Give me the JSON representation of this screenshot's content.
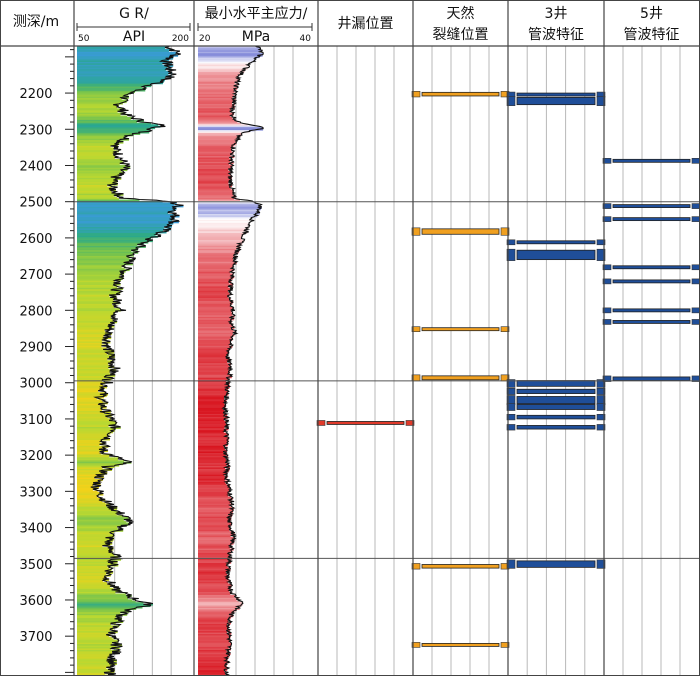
{
  "chart_data": {
    "type": "well-log",
    "depth_axis": {
      "label": "测深/m",
      "min": 2070,
      "max": 3810,
      "ticks": [
        2200,
        2300,
        2400,
        2500,
        2600,
        2700,
        2800,
        2900,
        3000,
        3100,
        3200,
        3300,
        3400,
        3500,
        3600,
        3700
      ]
    },
    "tracks": [
      {
        "key": "gr",
        "title_line1": "G R/",
        "title_line2": "API",
        "scale_min_label": "50",
        "scale_max_label": "200",
        "range": [
          50,
          200
        ],
        "fill_colors": [
          "#f2d21a",
          "#b9d832",
          "#6bbf53",
          "#2aa88c",
          "#3a9bd6"
        ]
      },
      {
        "key": "stress",
        "title_line1": "最小水平主应力/",
        "title_line2": "MPa",
        "scale_min_label": "20",
        "scale_max_label": "40",
        "range": [
          20,
          40
        ],
        "fill_colors": [
          "#d8141e",
          "#ffffff",
          "#7f86d8"
        ]
      },
      {
        "key": "loss",
        "title_line1": "井漏位置",
        "title_line2": "",
        "bar_color": "#e03a2a",
        "intervals": [
          [
            3107,
            3113
          ]
        ]
      },
      {
        "key": "fractures",
        "title_line1": "天然",
        "title_line2": "裂缝位置",
        "bar_color": "#f0a020",
        "intervals": [
          [
            2198,
            2208
          ],
          [
            2575,
            2590
          ],
          [
            2848,
            2856
          ],
          [
            2981,
            2992
          ],
          [
            3502,
            3512
          ],
          [
            3720,
            3728
          ]
        ]
      },
      {
        "key": "well3",
        "title_line1": "3井",
        "title_line2": "管波特征",
        "bar_color": "#1f4e99",
        "intervals": [
          [
            2200,
            2206
          ],
          [
            2212,
            2232
          ],
          [
            2608,
            2616
          ],
          [
            2634,
            2660
          ],
          [
            2994,
            3010
          ],
          [
            3018,
            3030
          ],
          [
            3038,
            3058
          ],
          [
            3060,
            3074
          ],
          [
            3090,
            3100
          ],
          [
            3118,
            3128
          ],
          [
            3492,
            3510
          ]
        ]
      },
      {
        "key": "well5",
        "title_line1": "5井",
        "title_line2": "管波特征",
        "bar_color": "#1f4e99",
        "intervals": [
          [
            2383,
            2391
          ],
          [
            2508,
            2516
          ],
          [
            2544,
            2552
          ],
          [
            2677,
            2685
          ],
          [
            2716,
            2724
          ],
          [
            2796,
            2804
          ],
          [
            2828,
            2836
          ],
          [
            2984,
            2994
          ]
        ]
      }
    ],
    "zone_boundaries": [
      2500,
      2995,
      3485
    ],
    "gr_curve": {
      "depth": [
        2070,
        2090,
        2110,
        2130,
        2150,
        2170,
        2200,
        2230,
        2260,
        2280,
        2290,
        2300,
        2320,
        2350,
        2380,
        2400,
        2430,
        2460,
        2490,
        2500,
        2510,
        2530,
        2550,
        2570,
        2590,
        2610,
        2640,
        2670,
        2700,
        2730,
        2760,
        2800,
        2830,
        2860,
        2900,
        2930,
        2960,
        2990,
        3010,
        3040,
        3070,
        3100,
        3130,
        3160,
        3190,
        3220,
        3230,
        3260,
        3290,
        3320,
        3350,
        3380,
        3400,
        3420,
        3450,
        3480,
        3510,
        3540,
        3570,
        3600,
        3615,
        3625,
        3640,
        3670,
        3700,
        3730,
        3760,
        3790,
        3810
      ],
      "value": [
        170,
        185,
        168,
        172,
        178,
        160,
        120,
        105,
        115,
        140,
        165,
        150,
        118,
        100,
        108,
        115,
        102,
        96,
        110,
        175,
        185,
        178,
        182,
        170,
        160,
        140,
        125,
        118,
        112,
        105,
        100,
        108,
        97,
        92,
        90,
        95,
        100,
        92,
        88,
        82,
        85,
        95,
        102,
        88,
        84,
        118,
        92,
        80,
        76,
        85,
        100,
        120,
        110,
        95,
        90,
        102,
        96,
        90,
        100,
        130,
        150,
        120,
        110,
        100,
        96,
        104,
        98,
        92,
        96
      ]
    },
    "stress_curve": {
      "depth": [
        2070,
        2090,
        2110,
        2130,
        2150,
        2170,
        2200,
        2230,
        2260,
        2280,
        2295,
        2310,
        2340,
        2370,
        2400,
        2430,
        2460,
        2490,
        2500,
        2510,
        2530,
        2550,
        2570,
        2590,
        2610,
        2640,
        2670,
        2700,
        2730,
        2760,
        2800,
        2830,
        2860,
        2900,
        2930,
        2960,
        2990,
        3010,
        3040,
        3070,
        3100,
        3130,
        3160,
        3190,
        3220,
        3260,
        3300,
        3340,
        3380,
        3420,
        3460,
        3500,
        3540,
        3580,
        3610,
        3620,
        3640,
        3680,
        3720,
        3760,
        3790,
        3810
      ],
      "value": [
        30.5,
        31.2,
        29.8,
        28.5,
        27.4,
        26.8,
        26.5,
        26.2,
        26.0,
        27.0,
        32.0,
        27.5,
        26.4,
        26.0,
        25.8,
        25.6,
        25.9,
        26.2,
        30.0,
        31.0,
        30.5,
        29.5,
        28.8,
        28.2,
        27.6,
        26.8,
        26.4,
        26.0,
        25.8,
        25.6,
        26.2,
        25.8,
        26.4,
        25.6,
        25.2,
        25.8,
        25.4,
        25.2,
        25.0,
        24.8,
        25.0,
        24.9,
        25.1,
        24.8,
        25.2,
        25.0,
        25.6,
        26.0,
        25.4,
        26.2,
        25.8,
        25.4,
        25.2,
        26.0,
        28.0,
        27.0,
        25.8,
        25.4,
        25.6,
        25.2,
        25.0,
        25.2
      ]
    }
  }
}
